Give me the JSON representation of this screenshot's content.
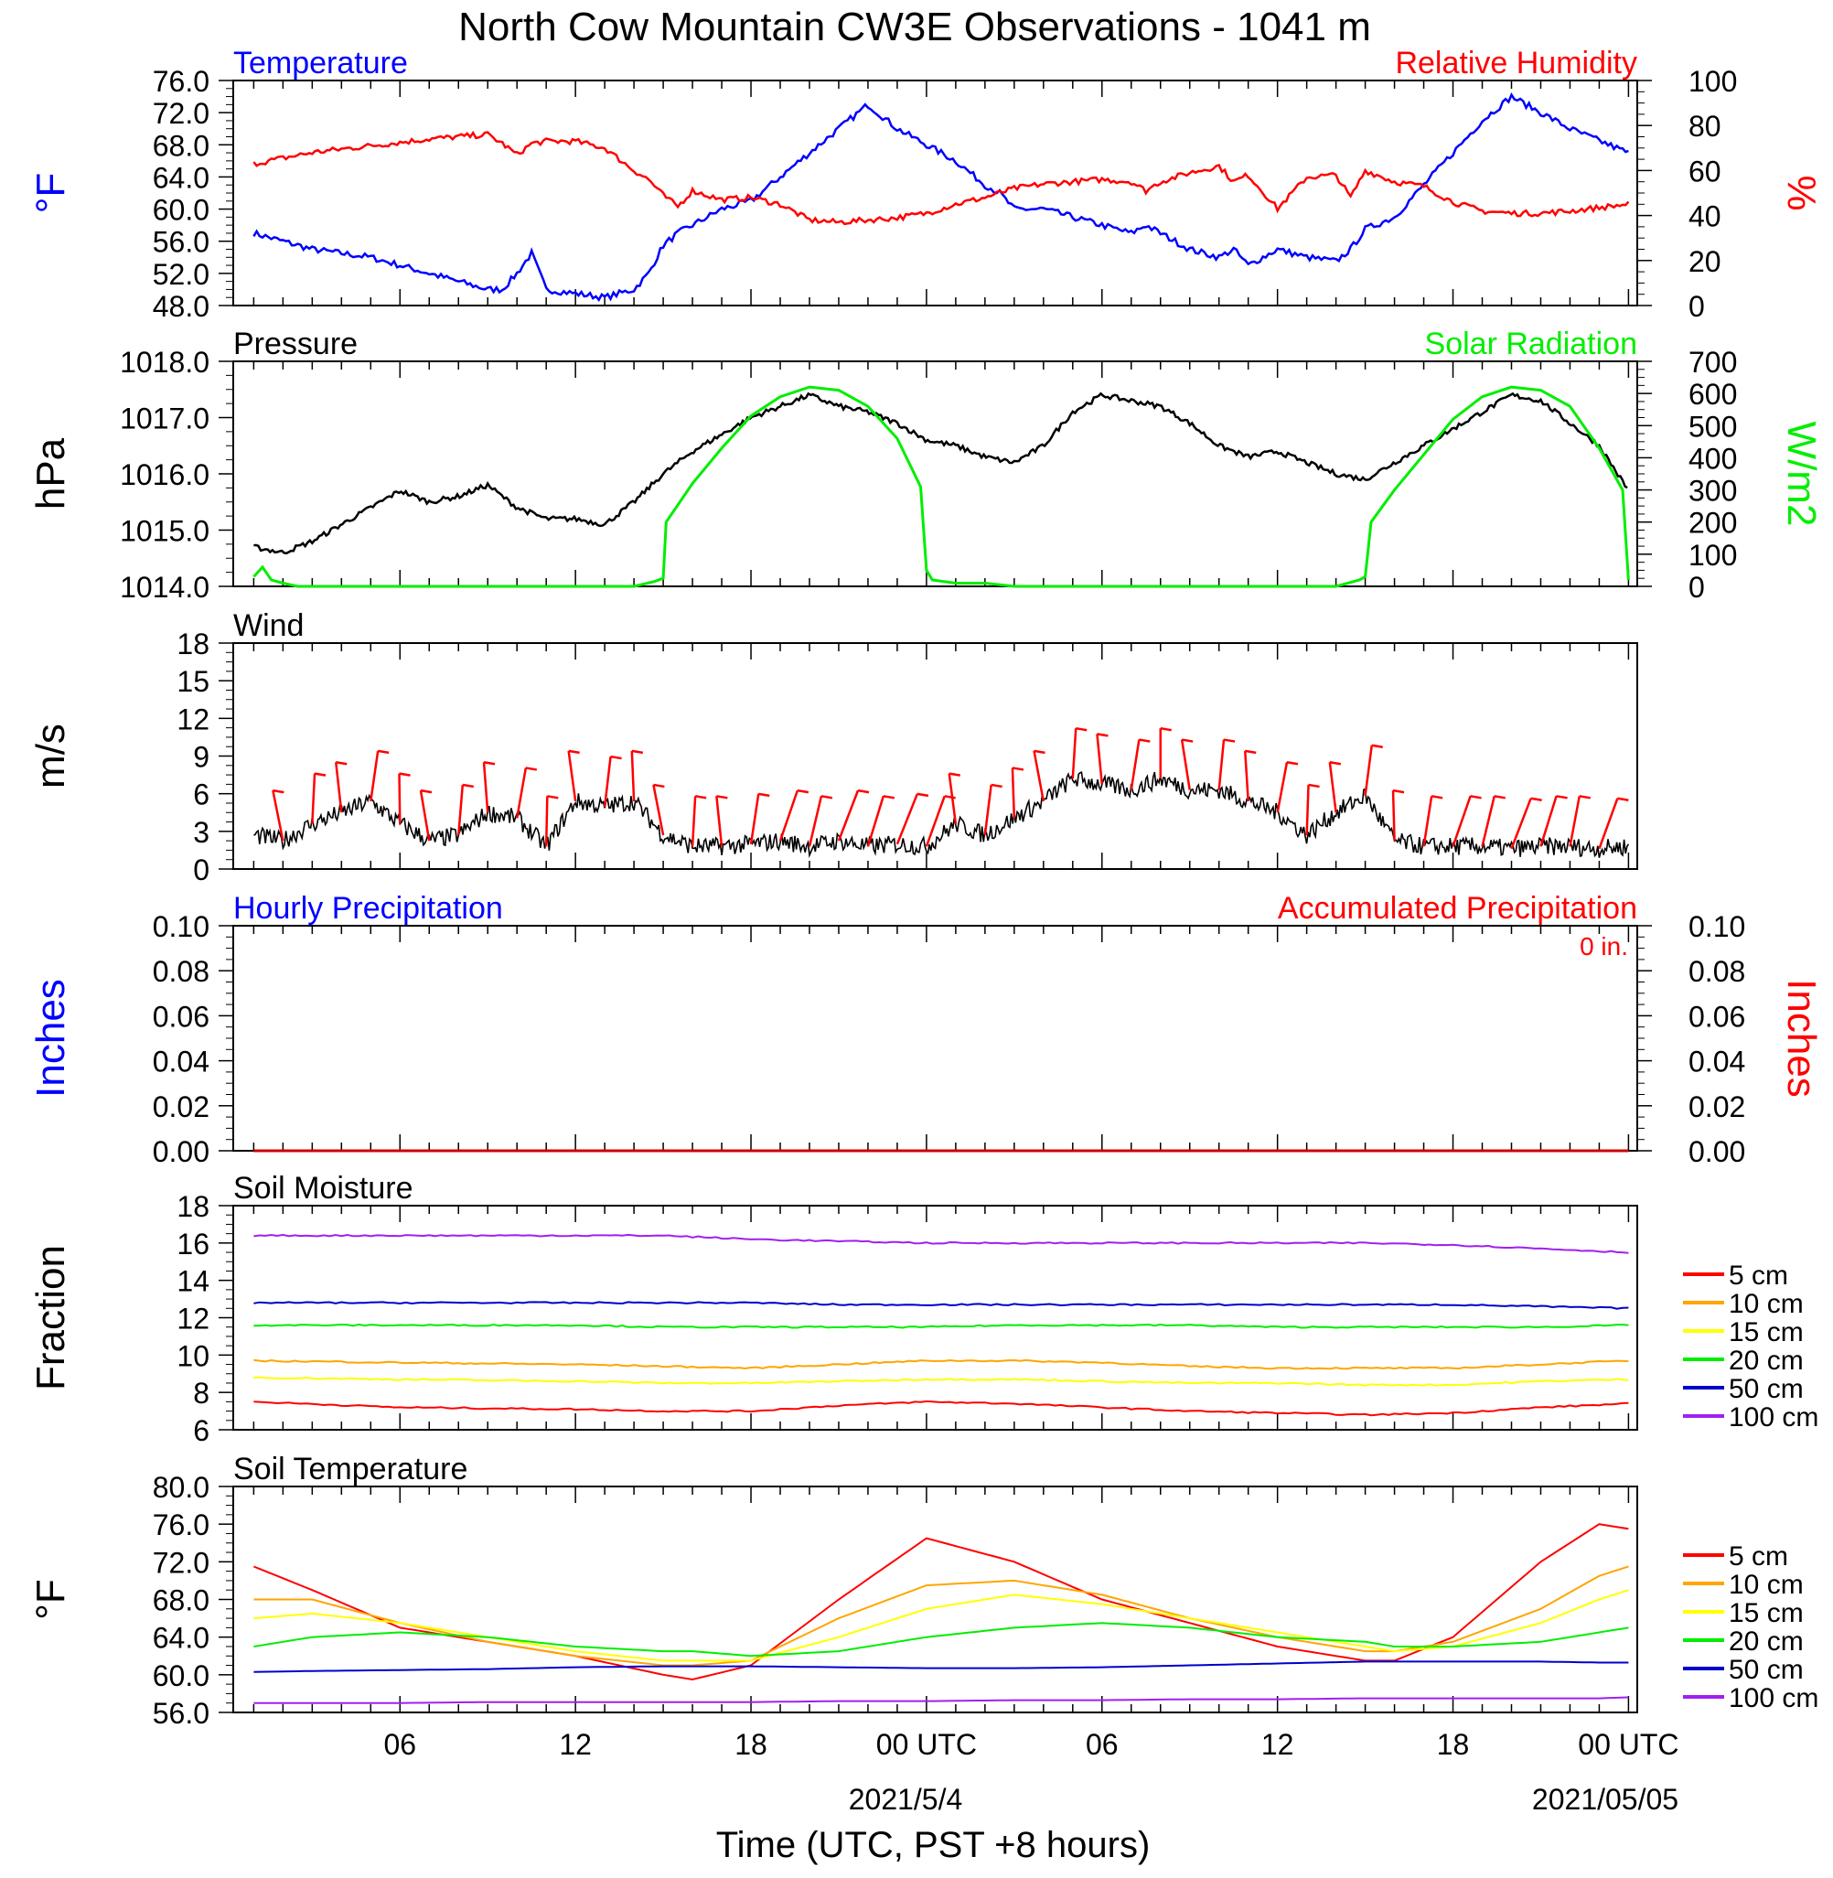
{
  "title": "North Cow Mountain CW3E Observations - 1041 m",
  "xaxis": {
    "label": "Time (UTC, PST +8 hours)",
    "tick_labels": [
      "06",
      "12",
      "18",
      "00 UTC",
      "06",
      "12",
      "18",
      "00 UTC"
    ],
    "date_labels": [
      "2021/5/4",
      "2021/05/05"
    ]
  },
  "chart_data": [
    {
      "type": "line",
      "id": "temp-rh",
      "title_left": "Temperature",
      "title_right": "Relative Humidity",
      "ylabel_left": "°F",
      "ylabel_right": "%",
      "ylim_left": [
        48,
        76
      ],
      "ylim_right": [
        0,
        100
      ],
      "yticks_left": [
        "76.0",
        "72.0",
        "68.0",
        "64.0",
        "60.0",
        "56.0",
        "52.0",
        "48.0"
      ],
      "yticks_right": [
        "100",
        "80",
        "60",
        "40",
        "20",
        "0"
      ],
      "x_hours": [
        1,
        3,
        5,
        7,
        8,
        9,
        9.5,
        10,
        10.5,
        11,
        12,
        13,
        14,
        14.5,
        15,
        15.5,
        16,
        17,
        18,
        19,
        20,
        21,
        22,
        23,
        24,
        25,
        26,
        26.5,
        27,
        28,
        29,
        30,
        31,
        31.5,
        32,
        33,
        34,
        34.5,
        35,
        36,
        37,
        38,
        38.5,
        39,
        40,
        41,
        42,
        43,
        44,
        45,
        46,
        48
      ],
      "series": [
        {
          "name": "Temperature",
          "color": "#0000ff",
          "axis": "left",
          "values": [
            57,
            55,
            54,
            52,
            51,
            50,
            50,
            52,
            54.5,
            50,
            49.5,
            49,
            50,
            52,
            55.5,
            57,
            58,
            60,
            61,
            64,
            67,
            70,
            73,
            70,
            68,
            66,
            63,
            62,
            60,
            60,
            59,
            58,
            57,
            58,
            57,
            55,
            54,
            55,
            53,
            55,
            54,
            53.5,
            55,
            57.5,
            59,
            63,
            67,
            71,
            74,
            72,
            70,
            67
          ]
        },
        {
          "name": "Relative Humidity",
          "color": "#ff0000",
          "axis": "right",
          "values": [
            63,
            68,
            71,
            74,
            75,
            76,
            72,
            67,
            72,
            73,
            73,
            70,
            60,
            56,
            49,
            44,
            51,
            47,
            48,
            45,
            38,
            37,
            38,
            39,
            41,
            45,
            48,
            50,
            52,
            54,
            55,
            56,
            55,
            51,
            55,
            59,
            62,
            55,
            58,
            43,
            57,
            58,
            48,
            60,
            55,
            53,
            46,
            42,
            41,
            41,
            42,
            45
          ]
        }
      ]
    },
    {
      "type": "line",
      "id": "pressure-solar",
      "title_left": "Pressure",
      "title_right": "Solar Radiation",
      "ylabel_left": "hPa",
      "ylabel_right": "W/m2",
      "ylim_left": [
        1014,
        1018
      ],
      "ylim_right": [
        0,
        700
      ],
      "yticks_left": [
        "1018.0",
        "1017.0",
        "1016.0",
        "1015.0",
        "1014.0"
      ],
      "yticks_right": [
        "700",
        "600",
        "500",
        "400",
        "300",
        "200",
        "100",
        "0"
      ],
      "series": [
        {
          "name": "Pressure",
          "color": "#000000",
          "axis": "left",
          "x_hours": [
            1,
            2,
            3,
            4,
            5,
            6,
            7,
            8,
            9,
            10,
            11,
            12,
            13,
            14,
            15,
            16,
            17,
            18,
            19,
            20,
            21,
            22,
            23,
            24,
            25,
            26,
            27,
            28,
            29,
            30,
            31,
            32,
            33,
            34,
            35,
            36,
            37,
            38,
            39,
            40,
            41,
            42,
            43,
            44,
            45,
            46,
            47,
            48
          ],
          "values": [
            1014.7,
            1014.6,
            1014.8,
            1015.1,
            1015.4,
            1015.7,
            1015.5,
            1015.6,
            1015.8,
            1015.4,
            1015.2,
            1015.2,
            1015.1,
            1015.5,
            1016.0,
            1016.4,
            1016.7,
            1017.0,
            1017.2,
            1017.4,
            1017.2,
            1017.1,
            1016.9,
            1016.6,
            1016.5,
            1016.3,
            1016.2,
            1016.5,
            1017.1,
            1017.4,
            1017.3,
            1017.2,
            1016.9,
            1016.5,
            1016.3,
            1016.4,
            1016.2,
            1016.0,
            1015.9,
            1016.2,
            1016.5,
            1016.8,
            1017.1,
            1017.4,
            1017.3,
            1016.9,
            1016.5,
            1015.7
          ]
        },
        {
          "name": "Solar Radiation",
          "color": "#00ee00",
          "axis": "right",
          "x_hours": [
            1,
            1.3,
            1.6,
            2,
            2.5,
            14,
            14.7,
            15,
            15.1,
            16,
            17,
            18,
            19,
            20,
            21,
            22,
            23,
            23.8,
            24,
            24.2,
            25,
            26,
            26.5,
            27,
            38,
            38.8,
            39,
            39.2,
            40,
            41,
            42,
            43,
            44,
            45,
            46,
            47,
            47.8,
            48
          ],
          "values": [
            30,
            60,
            20,
            10,
            0,
            0,
            15,
            25,
            200,
            320,
            430,
            530,
            590,
            620,
            610,
            560,
            460,
            310,
            50,
            20,
            10,
            10,
            5,
            0,
            0,
            20,
            30,
            200,
            300,
            410,
            520,
            590,
            620,
            610,
            560,
            430,
            300,
            20
          ]
        }
      ]
    },
    {
      "type": "line",
      "id": "wind",
      "title_left": "Wind",
      "ylabel_left": "m/s",
      "ylim_left": [
        0,
        20
      ],
      "yticks_left": [
        "18",
        "15",
        "12",
        "9",
        "6",
        "3",
        "0"
      ],
      "series": [
        {
          "name": "Wind",
          "color": "#000000",
          "axis": "left",
          "x_hours": [
            1,
            2,
            3,
            4,
            5,
            6,
            7,
            8,
            9,
            10,
            11,
            12,
            13,
            14,
            15,
            16,
            17,
            18,
            19,
            20,
            21,
            22,
            23,
            24,
            25,
            26,
            27,
            28,
            29,
            30,
            31,
            32,
            33,
            34,
            35,
            36,
            37,
            38,
            39,
            40,
            41,
            42,
            43,
            44,
            45,
            46,
            47,
            48
          ],
          "values": [
            3,
            2.5,
            4,
            5,
            6,
            4,
            2.5,
            3,
            5,
            4.5,
            2,
            6,
            5.5,
            6,
            3,
            2,
            2,
            2.2,
            2.5,
            2,
            2.5,
            2,
            2.2,
            2,
            4,
            3,
            4.5,
            6,
            8,
            7.5,
            7,
            8,
            7,
            7,
            6,
            5,
            3,
            5,
            6.5,
            2.5,
            2,
            2,
            2,
            1.8,
            2,
            2,
            1.8,
            2
          ]
        }
      ],
      "barbs_hours": [
        2,
        3,
        4,
        5,
        6,
        7,
        8,
        9,
        10,
        11,
        12,
        13,
        14,
        15,
        16,
        17,
        18,
        19,
        20,
        21,
        22,
        23,
        24,
        25,
        26,
        27,
        28,
        29,
        30,
        31,
        32,
        33,
        34,
        35,
        36,
        37,
        38,
        39,
        40,
        41,
        42,
        43,
        44,
        45,
        46,
        47
      ]
    },
    {
      "type": "bar",
      "id": "precip",
      "title_left": "Hourly Precipitation",
      "title_right": "Accumulated Precipitation",
      "annotation": "0 in.",
      "ylabel_left": "Inches",
      "ylabel_right": "Inches",
      "ylim_left": [
        0,
        0.1
      ],
      "yticks_left": [
        "0.10",
        "0.08",
        "0.06",
        "0.04",
        "0.02",
        "0.00"
      ],
      "yticks_right": [
        "0.10",
        "0.08",
        "0.06",
        "0.04",
        "0.02",
        "0.00"
      ],
      "x_hours": [
        1,
        48
      ],
      "series": [
        {
          "name": "Hourly Precipitation",
          "color": "#0000ff",
          "values": [
            0,
            0
          ]
        },
        {
          "name": "Accumulated Precipitation",
          "color": "#cc0000",
          "values": [
            0,
            0
          ]
        }
      ]
    },
    {
      "type": "line",
      "id": "soil-moisture",
      "title_left": "Soil Moisture",
      "ylabel_left": "Fraction",
      "ylim_left": [
        6,
        18
      ],
      "yticks_left": [
        "18",
        "16",
        "14",
        "12",
        "10",
        "8",
        "6"
      ],
      "x_hours": [
        1,
        6,
        12,
        15,
        18,
        21,
        24,
        27,
        30,
        33,
        36,
        39,
        42,
        45,
        48
      ],
      "series": [
        {
          "name": "5 cm",
          "color": "#ff0000",
          "values": [
            7.5,
            7.2,
            7.1,
            7.0,
            7.0,
            7.3,
            7.5,
            7.4,
            7.2,
            7.0,
            6.9,
            6.8,
            6.9,
            7.2,
            7.4
          ]
        },
        {
          "name": "10 cm",
          "color": "#ffa500",
          "values": [
            9.7,
            9.6,
            9.5,
            9.4,
            9.3,
            9.5,
            9.7,
            9.7,
            9.6,
            9.4,
            9.3,
            9.3,
            9.3,
            9.5,
            9.7
          ]
        },
        {
          "name": "15 cm",
          "color": "#ffff00",
          "values": [
            8.8,
            8.7,
            8.6,
            8.5,
            8.5,
            8.6,
            8.7,
            8.7,
            8.6,
            8.5,
            8.5,
            8.4,
            8.4,
            8.6,
            8.7
          ]
        },
        {
          "name": "20 cm",
          "color": "#00ee00",
          "values": [
            11.6,
            11.6,
            11.6,
            11.5,
            11.5,
            11.5,
            11.5,
            11.6,
            11.6,
            11.6,
            11.5,
            11.5,
            11.5,
            11.5,
            11.6
          ]
        },
        {
          "name": "50 cm",
          "color": "#0000cc",
          "values": [
            12.8,
            12.8,
            12.8,
            12.8,
            12.8,
            12.7,
            12.7,
            12.7,
            12.7,
            12.7,
            12.7,
            12.7,
            12.7,
            12.6,
            12.5
          ]
        },
        {
          "name": "100 cm",
          "color": "#a020f0",
          "values": [
            16.4,
            16.4,
            16.4,
            16.4,
            16.2,
            16.1,
            16.0,
            16.0,
            16.0,
            16.0,
            16.0,
            16.0,
            15.9,
            15.7,
            15.5
          ]
        }
      ]
    },
    {
      "type": "line",
      "id": "soil-temp",
      "title_left": "Soil Temperature",
      "ylabel_left": "°F",
      "ylim_left": [
        56,
        80
      ],
      "yticks_left": [
        "80.0",
        "76.0",
        "72.0",
        "68.0",
        "64.0",
        "60.0",
        "56.0"
      ],
      "x_hours": [
        1,
        3,
        6,
        9,
        12,
        15,
        16,
        18,
        21,
        24,
        27,
        30,
        33,
        36,
        39,
        40,
        42,
        45,
        47,
        48
      ],
      "series": [
        {
          "name": "5 cm",
          "color": "#ff0000",
          "values": [
            71.5,
            69,
            65,
            63.5,
            62,
            60,
            59.5,
            61,
            68,
            74.5,
            72,
            68,
            65.5,
            63,
            61.5,
            61.5,
            64,
            72,
            76,
            75.5
          ]
        },
        {
          "name": "10 cm",
          "color": "#ffa500",
          "values": [
            68,
            68,
            65.5,
            63.5,
            62,
            61,
            61,
            61.5,
            66,
            69.5,
            70,
            68.5,
            66,
            64,
            62.5,
            62.5,
            63.5,
            67,
            70.5,
            71.5
          ]
        },
        {
          "name": "15 cm",
          "color": "#ffff00",
          "values": [
            66,
            66.5,
            65.5,
            64,
            62.5,
            61.5,
            61.5,
            61.5,
            64,
            67,
            68.5,
            67.5,
            66,
            64.5,
            63,
            62.5,
            63,
            65.5,
            68,
            69
          ]
        },
        {
          "name": "20 cm",
          "color": "#00ee00",
          "values": [
            63,
            64,
            64.5,
            64,
            63,
            62.5,
            62.5,
            62,
            62.5,
            64,
            65,
            65.5,
            65,
            64,
            63.5,
            63,
            63,
            63.5,
            64.5,
            65
          ]
        },
        {
          "name": "50 cm",
          "color": "#0000cc",
          "values": [
            60.3,
            60.4,
            60.5,
            60.6,
            60.8,
            60.9,
            60.9,
            60.9,
            60.8,
            60.7,
            60.7,
            60.8,
            61,
            61.2,
            61.4,
            61.4,
            61.4,
            61.4,
            61.3,
            61.3
          ]
        },
        {
          "name": "100 cm",
          "color": "#a020f0",
          "values": [
            57,
            57,
            57,
            57.1,
            57.1,
            57.1,
            57.1,
            57.1,
            57.2,
            57.2,
            57.3,
            57.3,
            57.4,
            57.4,
            57.5,
            57.5,
            57.5,
            57.5,
            57.5,
            57.6
          ]
        }
      ]
    }
  ]
}
